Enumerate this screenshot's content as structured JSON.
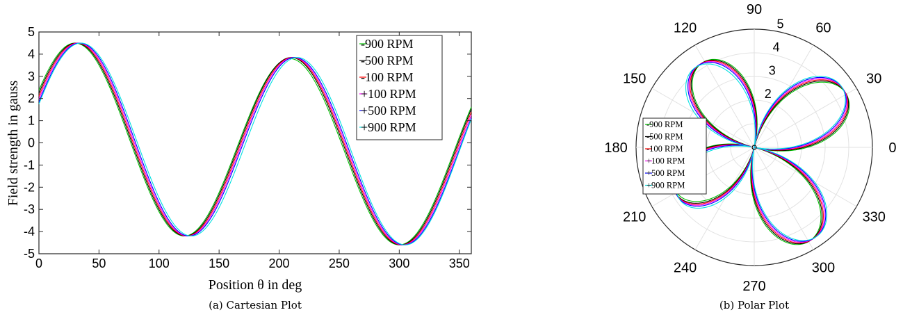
{
  "chart_data": [
    {
      "type": "line",
      "caption": "(a) Cartesian Plot",
      "xlabel": "Position θ in deg",
      "ylabel": "Field strength in gauss",
      "xlim": [
        0,
        360
      ],
      "ylim": [
        -5,
        5
      ],
      "xticks": [
        "0",
        "50",
        "100",
        "150",
        "200",
        "250",
        "300",
        "350"
      ],
      "yticks": [
        "5",
        "4",
        "3",
        "2",
        "1",
        "0",
        "-1",
        "-2",
        "-3",
        "-4",
        "-5"
      ],
      "legend_position": "top-right",
      "grid": false,
      "series": [
        {
          "name": "-900 RPM",
          "color": "#00c000",
          "peaks": [
            {
              "x": 30,
              "y": 4.5
            },
            {
              "x": 209,
              "y": 3.8
            }
          ],
          "troughs": [
            {
              "x": 121,
              "y": -4.2
            },
            {
              "x": 300,
              "y": -4.6
            }
          ],
          "y_at_0": 2.1,
          "y_at_360": 2.2
        },
        {
          "name": "-500 RPM",
          "color": "#000000",
          "peaks": [
            {
              "x": 31,
              "y": 4.5
            },
            {
              "x": 210,
              "y": 3.85
            }
          ],
          "troughs": [
            {
              "x": 122,
              "y": -4.2
            },
            {
              "x": 301,
              "y": -4.6
            }
          ],
          "y_at_0": 1.9,
          "y_at_360": 2.0
        },
        {
          "name": "-100 RPM",
          "color": "#ff0000",
          "peaks": [
            {
              "x": 32,
              "y": 4.5
            },
            {
              "x": 211,
              "y": 3.85
            }
          ],
          "troughs": [
            {
              "x": 123,
              "y": -4.2
            },
            {
              "x": 302,
              "y": -4.6
            }
          ],
          "y_at_0": 1.7,
          "y_at_360": 1.7
        },
        {
          "name": "+100 RPM",
          "color": "#ff00ff",
          "peaks": [
            {
              "x": 33,
              "y": 4.5
            },
            {
              "x": 212,
              "y": 3.85
            }
          ],
          "troughs": [
            {
              "x": 124,
              "y": -4.2
            },
            {
              "x": 303,
              "y": -4.6
            }
          ],
          "y_at_0": 1.5,
          "y_at_360": 1.5
        },
        {
          "name": "+500 RPM",
          "color": "#0000ff",
          "peaks": [
            {
              "x": 34,
              "y": 4.5
            },
            {
              "x": 213,
              "y": 3.85
            }
          ],
          "troughs": [
            {
              "x": 125,
              "y": -4.2
            },
            {
              "x": 304,
              "y": -4.6
            }
          ],
          "y_at_0": 1.3,
          "y_at_360": 1.0
        },
        {
          "name": "+900 RPM",
          "color": "#00e0e0",
          "peaks": [
            {
              "x": 35,
              "y": 4.5
            },
            {
              "x": 215,
              "y": 3.85
            }
          ],
          "troughs": [
            {
              "x": 127,
              "y": -4.2
            },
            {
              "x": 305,
              "y": -4.6
            }
          ],
          "y_at_0": 1.1,
          "y_at_360": 1.0
        }
      ]
    },
    {
      "type": "polar-line",
      "caption": "(b) Polar Plot",
      "angle_ticks": [
        "0",
        "30",
        "60",
        "90",
        "120",
        "150",
        "180",
        "210",
        "240",
        "270",
        "300",
        "330"
      ],
      "angle_tick_values": [
        0,
        30,
        60,
        90,
        120,
        150,
        180,
        210,
        240,
        270,
        300,
        330
      ],
      "radial_ticks": [
        "2",
        "3",
        "4",
        "5"
      ],
      "radial_tick_values": [
        2,
        3,
        4,
        5
      ],
      "radial_tick_angle": 80,
      "rlim": [
        0,
        5
      ],
      "legend_position": "left",
      "grid": true,
      "series": [
        {
          "name": "-900 RPM",
          "color": "#00c000",
          "lobe_angles": [
            30,
            121,
            209,
            300
          ],
          "lobe_radii": [
            4.5,
            4.2,
            3.8,
            4.6
          ]
        },
        {
          "name": "-500 RPM",
          "color": "#000000",
          "lobe_angles": [
            31,
            122,
            210,
            301
          ],
          "lobe_radii": [
            4.5,
            4.2,
            3.85,
            4.6
          ]
        },
        {
          "name": "-100 RPM",
          "color": "#ff0000",
          "lobe_angles": [
            32,
            123,
            211,
            302
          ],
          "lobe_radii": [
            4.5,
            4.2,
            3.85,
            4.6
          ]
        },
        {
          "name": "+100 RPM",
          "color": "#ff00ff",
          "lobe_angles": [
            33,
            124,
            212,
            303
          ],
          "lobe_radii": [
            4.5,
            4.2,
            3.85,
            4.6
          ]
        },
        {
          "name": "+500 RPM",
          "color": "#0000ff",
          "lobe_angles": [
            34,
            125,
            213,
            304
          ],
          "lobe_radii": [
            4.5,
            4.2,
            3.85,
            4.6
          ]
        },
        {
          "name": "+900 RPM",
          "color": "#00e0e0",
          "lobe_angles": [
            35,
            127,
            215,
            305
          ],
          "lobe_radii": [
            4.5,
            4.2,
            3.85,
            4.6
          ]
        }
      ]
    }
  ]
}
